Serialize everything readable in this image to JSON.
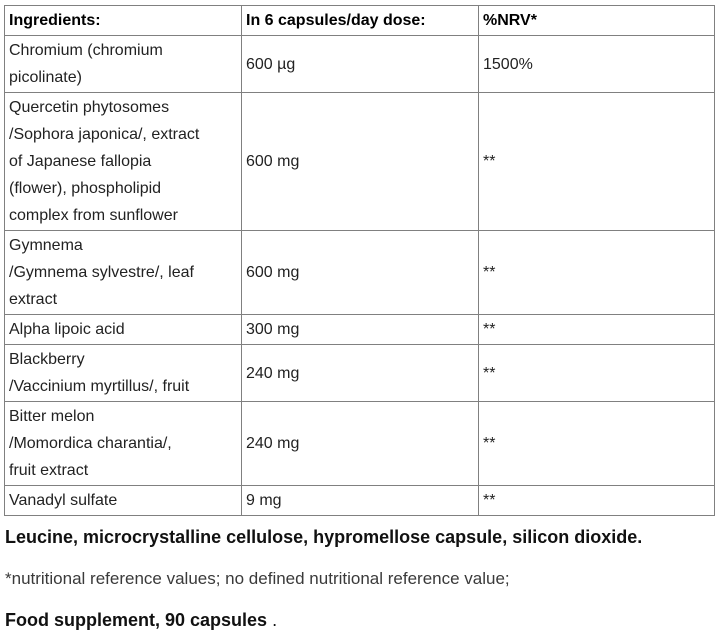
{
  "table": {
    "headers": {
      "ingredients": "Ingredients:",
      "dose": "In 6 capsules/day dose:",
      "nrv": "%NRV*"
    },
    "rows": [
      {
        "ingredient": [
          "Chromium (chromium",
          "picolinate)"
        ],
        "dose": "600 µg",
        "nrv": "1500%"
      },
      {
        "ingredient": [
          "Quercetin phytosomes",
          "/Sophora japonica/, extract",
          "of Japanese fallopia",
          "(flower), phospholipid",
          "complex from sunflower"
        ],
        "dose": "600 mg",
        "nrv": "**"
      },
      {
        "ingredient": [
          "Gymnema",
          "/Gymnema sylvestre/, leaf",
          "extract"
        ],
        "dose": "600 mg",
        "nrv": "**"
      },
      {
        "ingredient": [
          "Alpha lipoic acid"
        ],
        "dose": "300 mg",
        "nrv": "**"
      },
      {
        "ingredient": [
          "Blackberry",
          "/Vaccinium myrtillus/, fruit"
        ],
        "dose": "240 mg",
        "nrv": "**"
      },
      {
        "ingredient": [
          "Bitter melon",
          "/Momordica charantia/,",
          "fruit extract"
        ],
        "dose": "240 mg",
        "nrv": "**"
      },
      {
        "ingredient": [
          "Vanadyl sulfate"
        ],
        "dose": "9 mg",
        "nrv": "**"
      }
    ]
  },
  "notes": {
    "other_ingredients": "Leucine, microcrystalline cellulose, hypromellose capsule, silicon dioxide.",
    "nrv_footnote": "*nutritional reference values; no defined nutritional reference value;",
    "food_supplement": "Food supplement, 90 capsules",
    "food_supplement_tail": " ."
  },
  "colors": {
    "border": "#808080",
    "text": "#222222"
  }
}
